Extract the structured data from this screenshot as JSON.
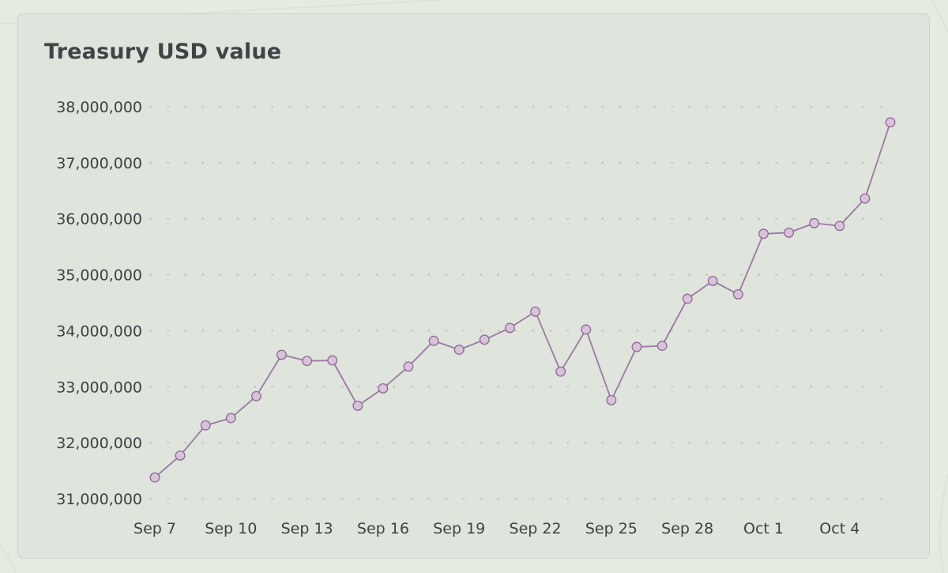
{
  "chart_data": {
    "type": "line",
    "title": "Treasury USD value",
    "xlabel": "",
    "ylabel": "",
    "x_tick_labels": [
      "Sep 7",
      "Sep 10",
      "Sep 13",
      "Sep 16",
      "Sep 19",
      "Sep 22",
      "Sep 25",
      "Sep 28",
      "Oct 1",
      "Oct 4"
    ],
    "y_tick_labels": [
      "31,000,000",
      "32,000,000",
      "33,000,000",
      "34,000,000",
      "35,000,000",
      "36,000,000",
      "37,000,000",
      "38,000,000"
    ],
    "y_ticks": [
      31000000,
      32000000,
      33000000,
      34000000,
      35000000,
      36000000,
      37000000,
      38000000
    ],
    "ylim": [
      31000000,
      38000000
    ],
    "xlim": [
      "2023-09-07",
      "2023-10-06"
    ],
    "grid": "horizontal-dotted",
    "legend": "none",
    "colors": {
      "line": "#9a78a2",
      "marker_fill": "#d8c3d9",
      "marker_stroke": "#8e6a98",
      "grid": "#b9beb6"
    },
    "series": [
      {
        "x": [
          "2023-09-07",
          "2023-09-08",
          "2023-09-09",
          "2023-09-10",
          "2023-09-11",
          "2023-09-12",
          "2023-09-13",
          "2023-09-14",
          "2023-09-15",
          "2023-09-16",
          "2023-09-17",
          "2023-09-18",
          "2023-09-19",
          "2023-09-20",
          "2023-09-21",
          "2023-09-22",
          "2023-09-23",
          "2023-09-24",
          "2023-09-25",
          "2023-09-26",
          "2023-09-27",
          "2023-09-28",
          "2023-09-29",
          "2023-09-30",
          "2023-10-01",
          "2023-10-02",
          "2023-10-03",
          "2023-10-04",
          "2023-10-05",
          "2023-10-06"
        ],
        "values": [
          31380000,
          31770000,
          32310000,
          32440000,
          32830000,
          33570000,
          33460000,
          33470000,
          32660000,
          32970000,
          33360000,
          33820000,
          33660000,
          33840000,
          34050000,
          34340000,
          33270000,
          34020000,
          32760000,
          33710000,
          33730000,
          34570000,
          34890000,
          34650000,
          35730000,
          35750000,
          35920000,
          35870000,
          36360000,
          37720000
        ]
      }
    ]
  }
}
